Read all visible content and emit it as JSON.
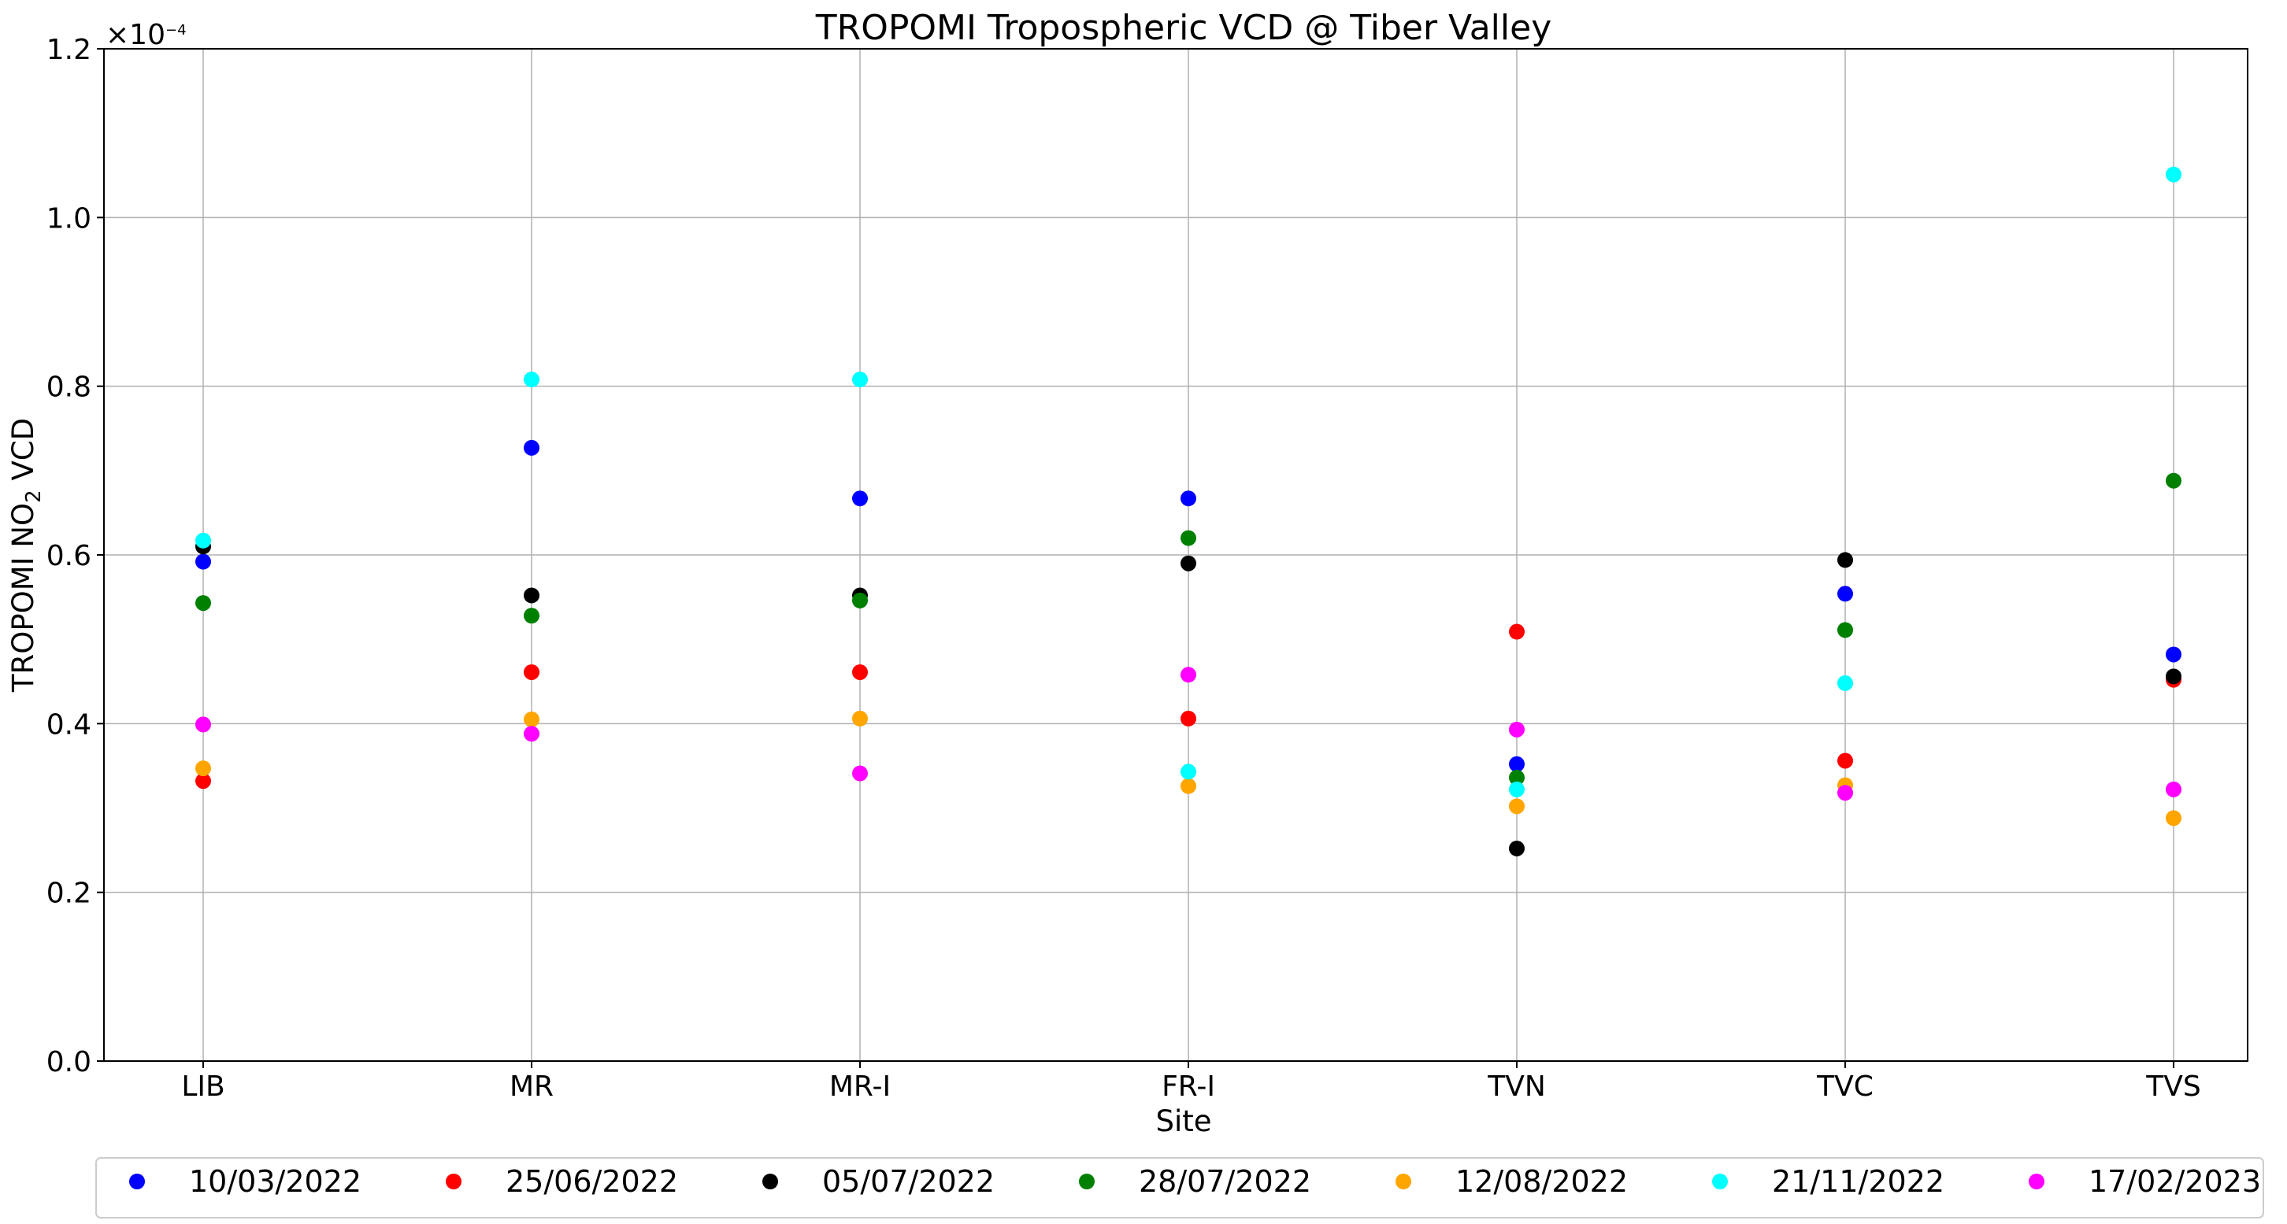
{
  "chart_data": {
    "type": "scatter",
    "title": "TROPOMI Tropospheric VCD @ Tiber Valley",
    "xlabel": "Site",
    "ylabel_parts": {
      "pre": "TROPOMI NO",
      "sub": "2",
      "post": " VCD"
    },
    "y_scale_label": "×10",
    "y_scale_exponent": "−4",
    "ylim": [
      0.0,
      1.2
    ],
    "y_ticks": [
      "0.0",
      "0.2",
      "0.4",
      "0.6",
      "0.8",
      "1.0",
      "1.2"
    ],
    "categories": [
      "LIB",
      "MR",
      "MR-I",
      "FR-I",
      "TVN",
      "TVC",
      "TVS"
    ],
    "grid": true,
    "legend_position": "bottom",
    "series": [
      {
        "name": "10/03/2022",
        "color": "#0000ff",
        "values": [
          0.592,
          0.727,
          0.667,
          0.667,
          0.352,
          0.554,
          0.482
        ]
      },
      {
        "name": "25/06/2022",
        "color": "#ff0000",
        "values": [
          0.332,
          0.461,
          0.461,
          0.406,
          0.509,
          0.356,
          0.452
        ]
      },
      {
        "name": "05/07/2022",
        "color": "#000000",
        "values": [
          0.61,
          0.552,
          0.552,
          0.59,
          0.252,
          0.594,
          0.456
        ]
      },
      {
        "name": "28/07/2022",
        "color": "#008000",
        "values": [
          0.543,
          0.528,
          0.546,
          0.62,
          0.336,
          0.511,
          0.688
        ]
      },
      {
        "name": "12/08/2022",
        "color": "#ffa500",
        "values": [
          0.347,
          0.405,
          0.406,
          0.326,
          0.302,
          0.327,
          0.288
        ]
      },
      {
        "name": "21/11/2022",
        "color": "#00ffff",
        "values": [
          0.617,
          0.808,
          0.808,
          0.343,
          0.322,
          0.448,
          1.051
        ]
      },
      {
        "name": "17/02/2023",
        "color": "#ff00ff",
        "values": [
          0.399,
          0.388,
          0.341,
          0.458,
          0.393,
          0.318,
          0.322
        ]
      }
    ]
  }
}
